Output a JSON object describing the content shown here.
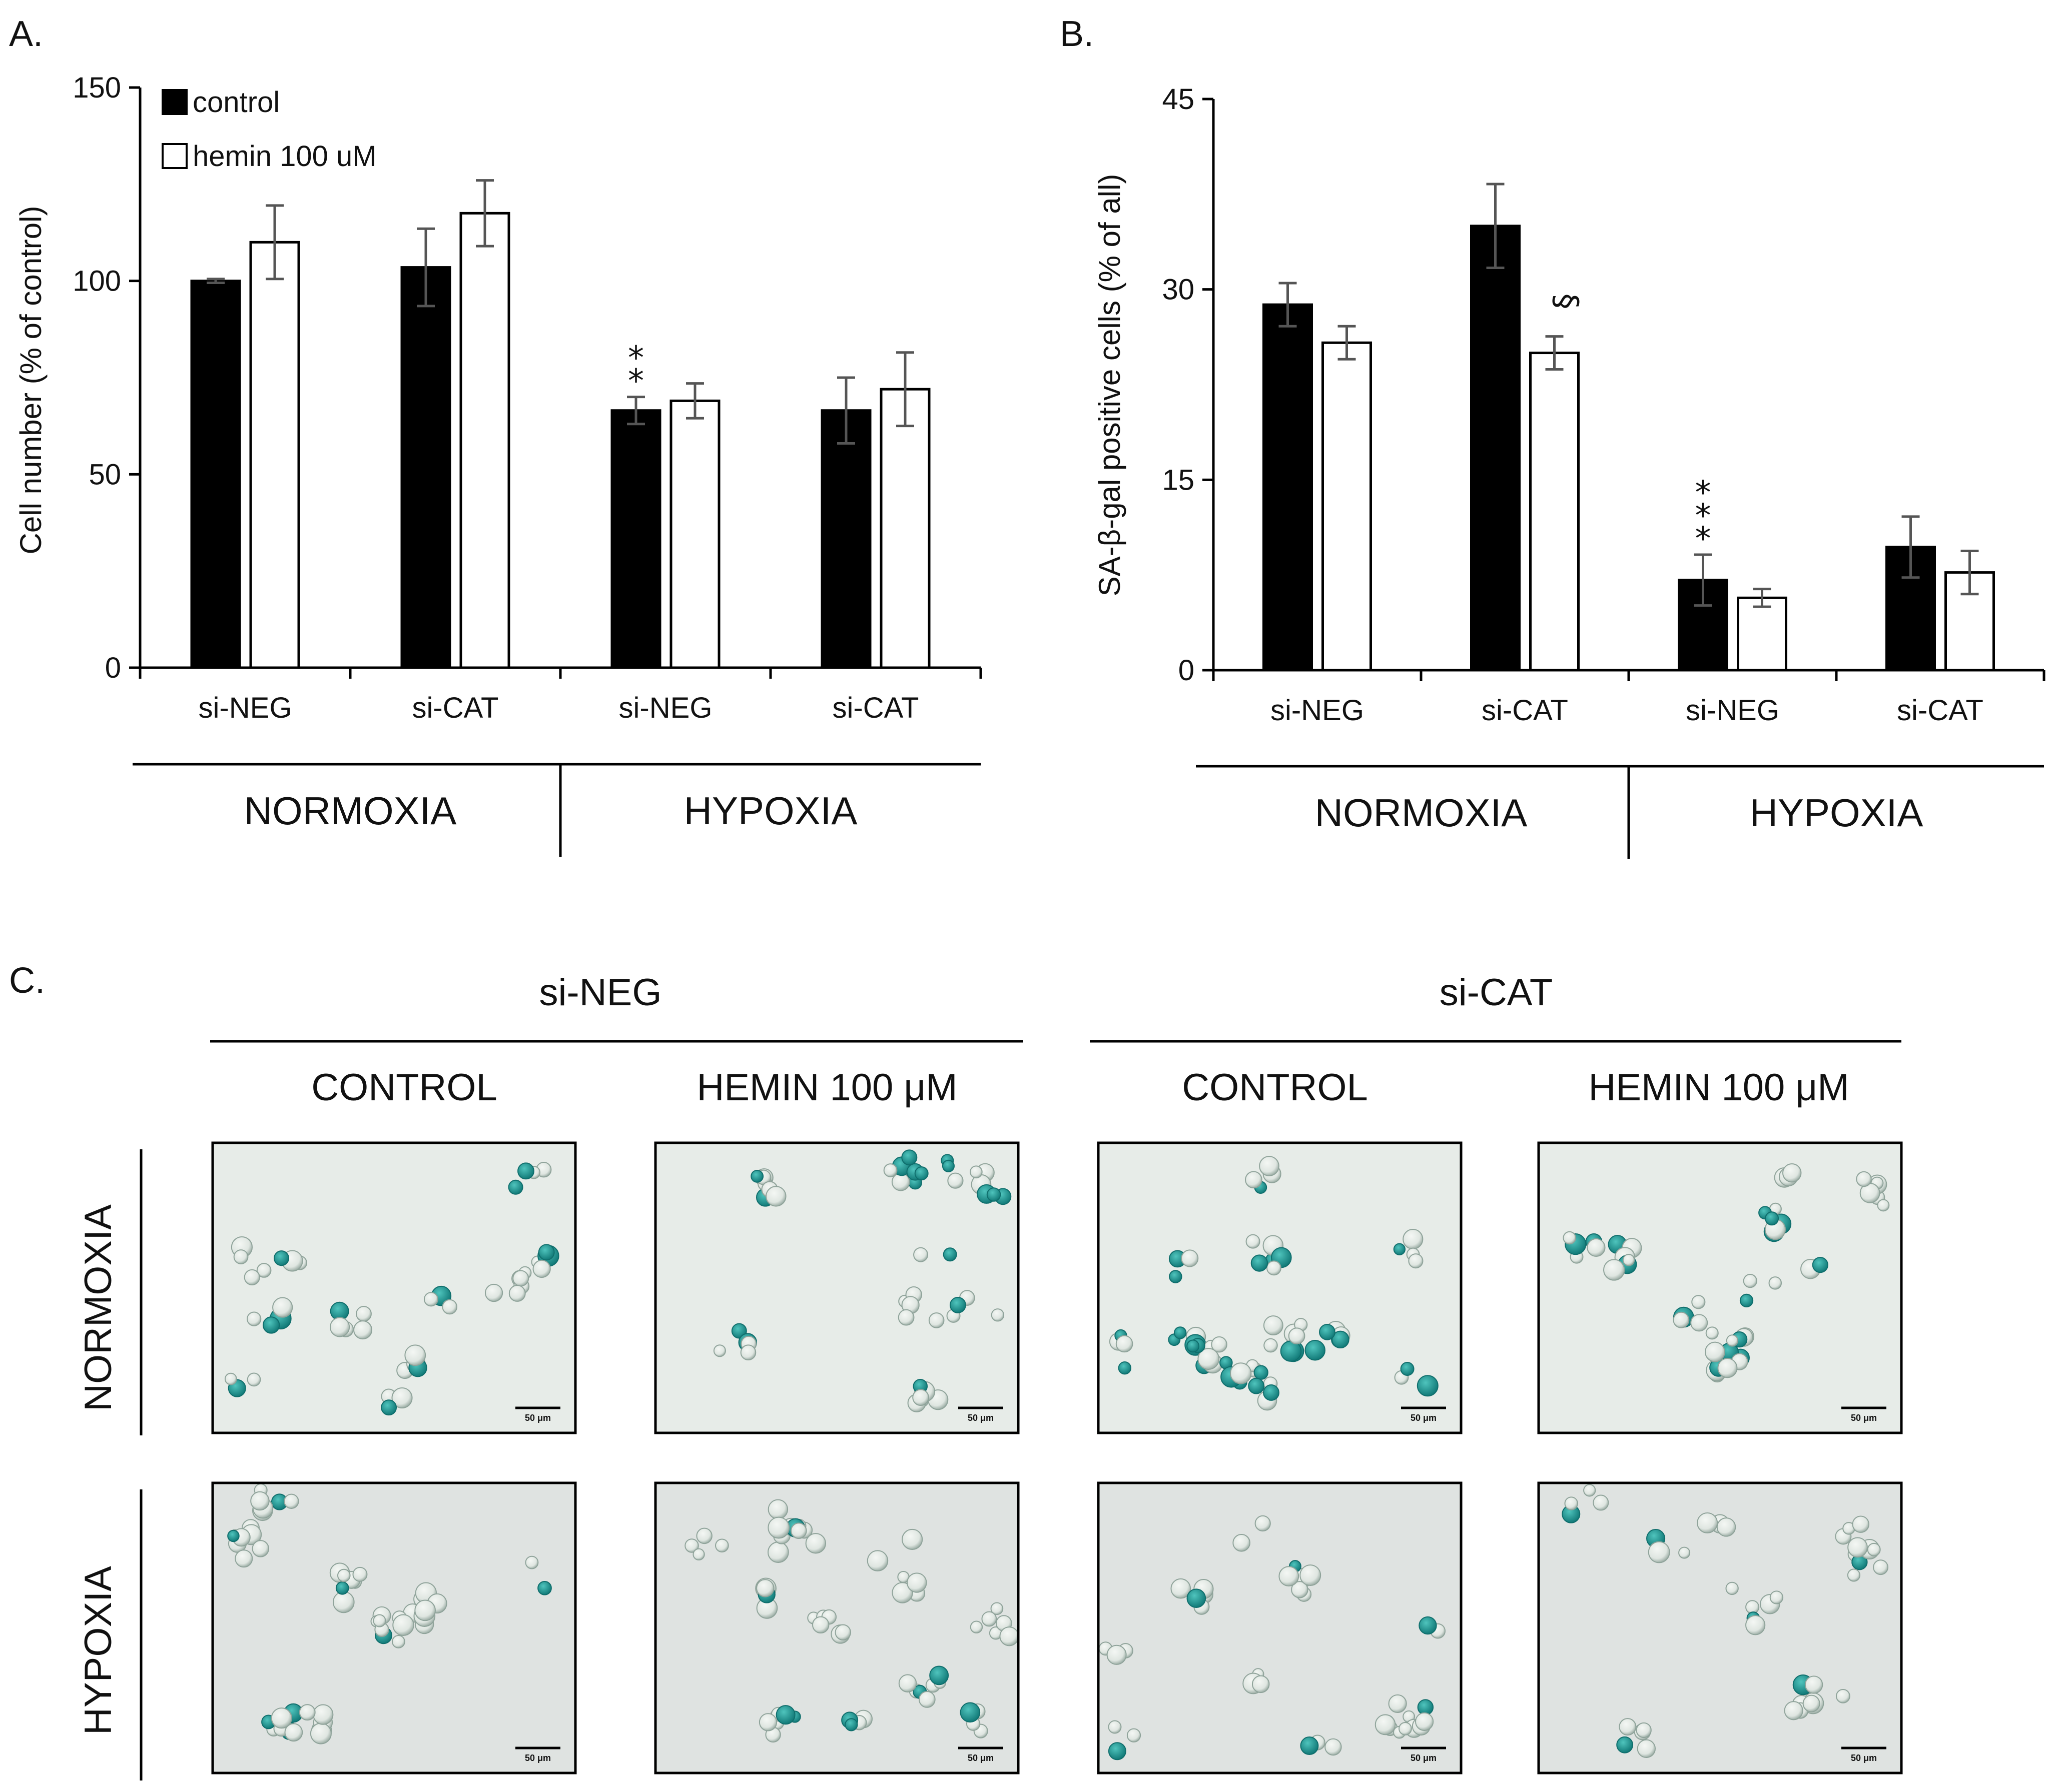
{
  "panels": {
    "a": {
      "letter": "A."
    },
    "b": {
      "letter": "B."
    },
    "c": {
      "letter": "C."
    }
  },
  "chart_data": [
    {
      "type": "bar",
      "ylabel": "Cell number (% of control)",
      "ylim": [
        0,
        150
      ],
      "yticks": [
        0,
        50,
        100,
        150
      ],
      "categories": [
        "si-NEG",
        "si-CAT",
        "si-NEG",
        "si-CAT"
      ],
      "groups": [
        {
          "label": "NORMOXIA",
          "span": [
            0,
            1
          ]
        },
        {
          "label": "HYPOXIA",
          "span": [
            2,
            3
          ]
        }
      ],
      "legend_position": "top-left",
      "series": [
        {
          "name": "control",
          "color": "#000000",
          "values": [
            100,
            103.5,
            66.5,
            66.5
          ],
          "errors": [
            0.5,
            10,
            3.5,
            8.5
          ]
        },
        {
          "name": "hemin 100 uM",
          "color": "#ffffff",
          "values": [
            110,
            117.5,
            69,
            72
          ],
          "errors": [
            9.5,
            8.5,
            4.5,
            9.5
          ]
        }
      ],
      "annotations": [
        {
          "text": "* *",
          "category": 2,
          "series": 0
        }
      ]
    },
    {
      "type": "bar",
      "ylabel": "SA-β-gal positive cells (% of all)",
      "ylim": [
        0,
        45
      ],
      "yticks": [
        0,
        15,
        30,
        45
      ],
      "categories": [
        "si-NEG",
        "si-CAT",
        "si-NEG",
        "si-CAT"
      ],
      "groups": [
        {
          "label": "NORMOXIA",
          "span": [
            0,
            1
          ]
        },
        {
          "label": "HYPOXIA",
          "span": [
            2,
            3
          ]
        }
      ],
      "series": [
        {
          "color": "#000000",
          "values": [
            28.8,
            35,
            7.1,
            9.7
          ],
          "errors": [
            1.7,
            3.3,
            2,
            2.4
          ]
        },
        {
          "color": "#ffffff",
          "values": [
            25.8,
            25,
            5.7,
            7.7
          ],
          "errors": [
            1.3,
            1.3,
            0.7,
            1.7
          ]
        }
      ],
      "annotations": [
        {
          "text": "§",
          "category": 1,
          "series": 1
        },
        {
          "text": "* * *",
          "category": 2,
          "series": 0
        }
      ]
    }
  ],
  "micrographs": {
    "column_groups": [
      "si-NEG",
      "si-CAT"
    ],
    "column_labels": [
      "CONTROL",
      "HEMIN 100 μM",
      "CONTROL",
      "HEMIN 100 μM"
    ],
    "row_labels": [
      "NORMOXIA",
      "HYPOXIA"
    ],
    "scale_bar_label": "50 μm",
    "stain_color": "#2a9d9b"
  }
}
